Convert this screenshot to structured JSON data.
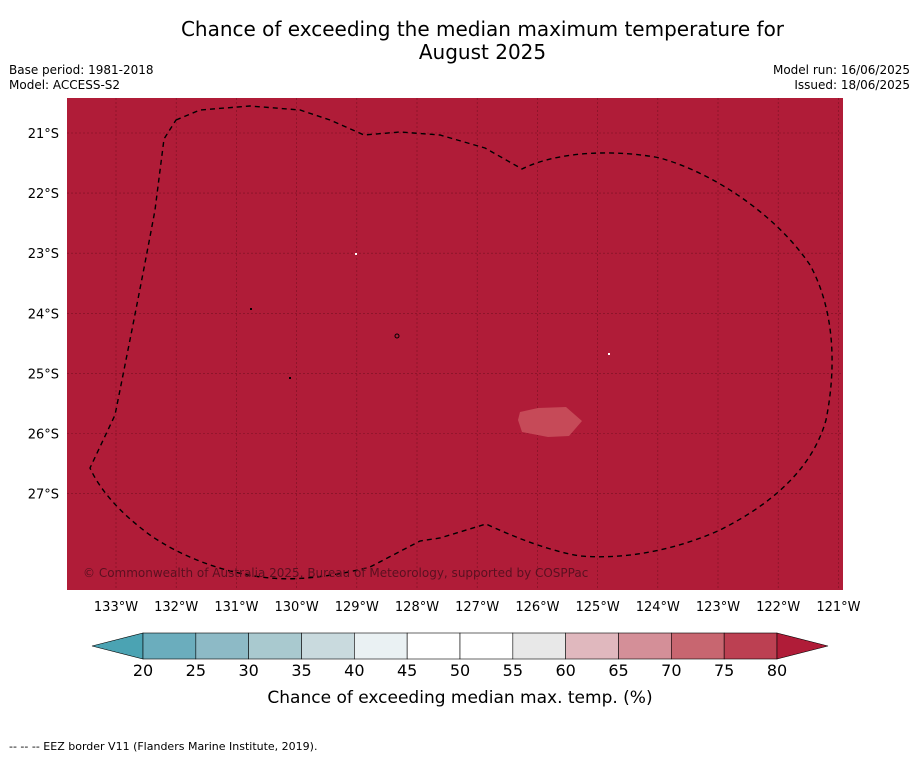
{
  "title_line1": "Chance of exceeding the median maximum temperature for",
  "title_line2": "August 2025",
  "base_period": "Base period: 1981-2018",
  "model": "Model: ACCESS-S2",
  "model_run": "Model run: 16/06/2025",
  "issued": "Issued: 18/06/2025",
  "copyright": "© Commonwealth of Australia 2025, Bureau of Meteorology, supported by COSPPac",
  "footer": "-- -- -- EEZ border V11 (Flanders Marine Institute, 2019).",
  "map": {
    "background_color": "#b01c38",
    "patch_color": "#c64a58",
    "lat_labels": [
      "21°S",
      "22°S",
      "23°S",
      "24°S",
      "25°S",
      "26°S",
      "27°S"
    ],
    "lon_labels": [
      "133°W",
      "132°W",
      "131°W",
      "130°W",
      "129°W",
      "128°W",
      "127°W",
      "126°W",
      "125°W",
      "124°W",
      "123°W",
      "122°W",
      "121°W"
    ]
  },
  "colorbar": {
    "label": "Chance of exceeding median max. temp. (%)",
    "ticks": [
      "20",
      "25",
      "30",
      "35",
      "40",
      "45",
      "50",
      "55",
      "60",
      "65",
      "70",
      "75",
      "80"
    ],
    "colors": [
      "#6badbd",
      "#8dbac6",
      "#a9c9cf",
      "#c9dade",
      "#eaf1f3",
      "#ffffff",
      "#ffffff",
      "#e8e8e8",
      "#e0b8be",
      "#d48f98",
      "#c86670",
      "#bc4052"
    ],
    "under_color": "#4ba3b3",
    "over_color": "#b01c38"
  }
}
